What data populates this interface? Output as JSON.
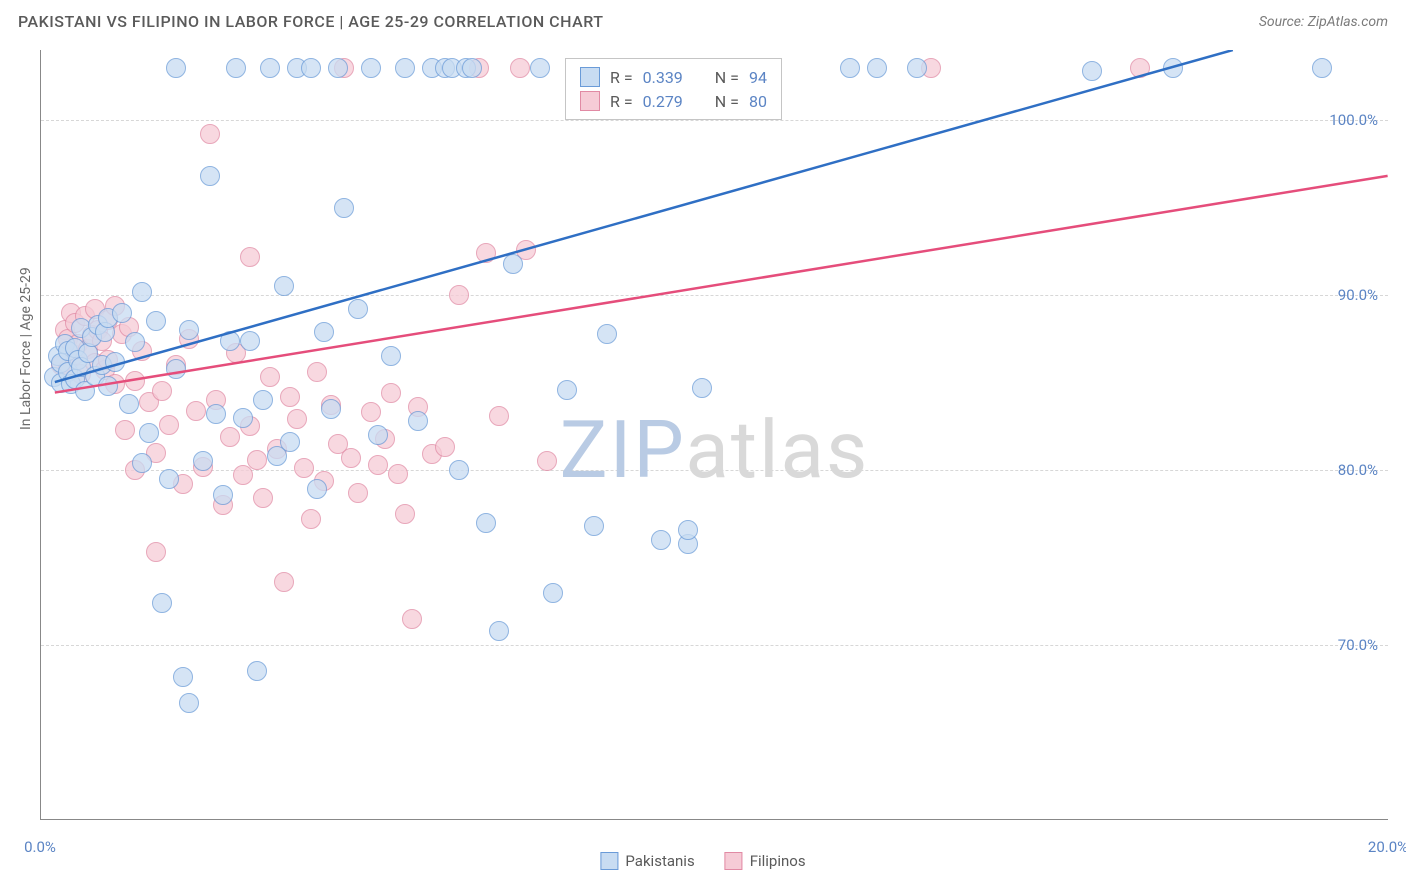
{
  "header": {
    "title": "PAKISTANI VS FILIPINO IN LABOR FORCE | AGE 25-29 CORRELATION CHART",
    "source": "Source: ZipAtlas.com"
  },
  "chart": {
    "type": "scatter",
    "y_axis_label": "In Labor Force | Age 25-29",
    "xlim": [
      0,
      20
    ],
    "ylim": [
      60,
      104
    ],
    "y_ticks": [
      70,
      80,
      90,
      100
    ],
    "y_tick_labels": [
      "70.0%",
      "80.0%",
      "90.0%",
      "100.0%"
    ],
    "x_ticks": [
      0,
      2,
      4,
      6,
      8,
      10,
      12,
      14,
      16,
      18,
      20
    ],
    "x_tick_labels": {
      "0": "0.0%",
      "20": "20.0%"
    },
    "grid_color": "#d7d7d7",
    "axis_color": "#888888",
    "background": "#ffffff",
    "text_color": "#5a5a5a",
    "tick_label_color": "#5b84c4",
    "marker_radius": 10,
    "series": {
      "pakistanis": {
        "label": "Pakistanis",
        "fill": "#c8dcf2",
        "stroke": "#6a9bd8",
        "opacity": 0.75,
        "R": 0.339,
        "N": 94,
        "regression": {
          "x1": 0.2,
          "y1": 85.0,
          "x2": 17.7,
          "y2": 104.0,
          "color": "#2f6fc4",
          "width": 2.5
        },
        "points": [
          [
            0.2,
            85.3
          ],
          [
            0.25,
            86.5
          ],
          [
            0.3,
            86.1
          ],
          [
            0.3,
            85.0
          ],
          [
            0.35,
            87.2
          ],
          [
            0.4,
            86.8
          ],
          [
            0.4,
            85.6
          ],
          [
            0.45,
            84.9
          ],
          [
            0.5,
            87.0
          ],
          [
            0.5,
            85.2
          ],
          [
            0.55,
            86.3
          ],
          [
            0.6,
            88.1
          ],
          [
            0.6,
            85.9
          ],
          [
            0.65,
            84.5
          ],
          [
            0.7,
            86.7
          ],
          [
            0.75,
            87.6
          ],
          [
            0.8,
            85.4
          ],
          [
            0.85,
            88.3
          ],
          [
            0.9,
            86.0
          ],
          [
            0.95,
            87.9
          ],
          [
            1.0,
            84.8
          ],
          [
            1.0,
            88.7
          ],
          [
            1.1,
            86.2
          ],
          [
            1.2,
            89.0
          ],
          [
            1.3,
            83.8
          ],
          [
            1.4,
            87.3
          ],
          [
            1.5,
            90.2
          ],
          [
            1.5,
            80.4
          ],
          [
            1.6,
            82.1
          ],
          [
            1.7,
            88.5
          ],
          [
            1.8,
            72.4
          ],
          [
            1.9,
            79.5
          ],
          [
            2.0,
            103.0
          ],
          [
            2.0,
            85.8
          ],
          [
            2.1,
            68.2
          ],
          [
            2.2,
            88.0
          ],
          [
            2.2,
            66.7
          ],
          [
            2.4,
            80.5
          ],
          [
            2.5,
            96.8
          ],
          [
            2.6,
            83.2
          ],
          [
            2.7,
            78.6
          ],
          [
            2.8,
            87.4
          ],
          [
            2.9,
            103.0
          ],
          [
            3.0,
            83.0
          ],
          [
            3.1,
            87.4
          ],
          [
            3.2,
            68.5
          ],
          [
            3.3,
            84.0
          ],
          [
            3.4,
            103.0
          ],
          [
            3.5,
            80.8
          ],
          [
            3.6,
            90.5
          ],
          [
            3.7,
            81.6
          ],
          [
            3.8,
            103.0
          ],
          [
            4.0,
            103.0
          ],
          [
            4.1,
            78.9
          ],
          [
            4.2,
            87.9
          ],
          [
            4.3,
            83.5
          ],
          [
            4.4,
            103.0
          ],
          [
            4.5,
            95.0
          ],
          [
            4.7,
            89.2
          ],
          [
            4.9,
            103.0
          ],
          [
            5.0,
            82.0
          ],
          [
            5.2,
            86.5
          ],
          [
            5.4,
            103.0
          ],
          [
            5.6,
            82.8
          ],
          [
            5.8,
            103.0
          ],
          [
            6.0,
            103.0
          ],
          [
            6.1,
            103.0
          ],
          [
            6.2,
            80.0
          ],
          [
            6.3,
            103.0
          ],
          [
            6.4,
            103.0
          ],
          [
            6.6,
            77.0
          ],
          [
            6.8,
            70.8
          ],
          [
            7.0,
            91.8
          ],
          [
            7.4,
            103.0
          ],
          [
            7.6,
            73.0
          ],
          [
            7.8,
            84.6
          ],
          [
            8.0,
            103.0
          ],
          [
            8.2,
            76.8
          ],
          [
            8.4,
            87.8
          ],
          [
            8.6,
            103.0
          ],
          [
            9.0,
            103.0
          ],
          [
            9.2,
            76.0
          ],
          [
            9.4,
            103.0
          ],
          [
            9.6,
            75.8
          ],
          [
            9.6,
            76.6
          ],
          [
            9.8,
            84.7
          ],
          [
            10.1,
            103.0
          ],
          [
            10.6,
            103.0
          ],
          [
            12.0,
            103.0
          ],
          [
            12.4,
            103.0
          ],
          [
            13.0,
            103.0
          ],
          [
            15.6,
            102.8
          ],
          [
            16.8,
            103.0
          ],
          [
            19.0,
            103.0
          ]
        ]
      },
      "filipinos": {
        "label": "Filipinos",
        "fill": "#f6cbd6",
        "stroke": "#e18aa4",
        "opacity": 0.75,
        "R": 0.279,
        "N": 80,
        "regression": {
          "x1": 0.2,
          "y1": 84.4,
          "x2": 20.0,
          "y2": 96.8,
          "color": "#e54d7b",
          "width": 2.5
        },
        "points": [
          [
            0.3,
            86.0
          ],
          [
            0.35,
            88.0
          ],
          [
            0.4,
            87.5
          ],
          [
            0.4,
            85.8
          ],
          [
            0.45,
            89.0
          ],
          [
            0.5,
            86.6
          ],
          [
            0.5,
            88.4
          ],
          [
            0.55,
            87.2
          ],
          [
            0.6,
            85.5
          ],
          [
            0.65,
            88.8
          ],
          [
            0.7,
            86.9
          ],
          [
            0.75,
            87.7
          ],
          [
            0.8,
            89.2
          ],
          [
            0.8,
            86.1
          ],
          [
            0.85,
            88.0
          ],
          [
            0.9,
            87.4
          ],
          [
            0.95,
            85.7
          ],
          [
            1.0,
            88.6
          ],
          [
            1.0,
            86.3
          ],
          [
            1.1,
            89.4
          ],
          [
            1.1,
            84.9
          ],
          [
            1.2,
            87.8
          ],
          [
            1.25,
            82.3
          ],
          [
            1.3,
            88.2
          ],
          [
            1.4,
            85.1
          ],
          [
            1.4,
            80.0
          ],
          [
            1.5,
            86.8
          ],
          [
            1.6,
            83.9
          ],
          [
            1.7,
            81.0
          ],
          [
            1.7,
            75.3
          ],
          [
            1.8,
            84.5
          ],
          [
            1.9,
            82.6
          ],
          [
            2.0,
            86.0
          ],
          [
            2.1,
            79.2
          ],
          [
            2.2,
            87.5
          ],
          [
            2.3,
            83.4
          ],
          [
            2.4,
            80.2
          ],
          [
            2.5,
            99.2
          ],
          [
            2.6,
            84.0
          ],
          [
            2.7,
            78.0
          ],
          [
            2.8,
            81.9
          ],
          [
            2.9,
            86.7
          ],
          [
            3.0,
            79.7
          ],
          [
            3.1,
            92.2
          ],
          [
            3.1,
            82.5
          ],
          [
            3.2,
            80.6
          ],
          [
            3.3,
            78.4
          ],
          [
            3.4,
            85.3
          ],
          [
            3.5,
            81.2
          ],
          [
            3.6,
            73.6
          ],
          [
            3.7,
            84.2
          ],
          [
            3.8,
            82.9
          ],
          [
            3.9,
            80.1
          ],
          [
            4.0,
            77.2
          ],
          [
            4.1,
            85.6
          ],
          [
            4.2,
            79.4
          ],
          [
            4.3,
            83.7
          ],
          [
            4.4,
            81.5
          ],
          [
            4.5,
            103.0
          ],
          [
            4.6,
            80.7
          ],
          [
            4.7,
            78.7
          ],
          [
            4.9,
            83.3
          ],
          [
            5.0,
            80.3
          ],
          [
            5.1,
            81.8
          ],
          [
            5.2,
            84.4
          ],
          [
            5.3,
            79.8
          ],
          [
            5.4,
            77.5
          ],
          [
            5.5,
            71.5
          ],
          [
            5.6,
            83.6
          ],
          [
            5.8,
            80.9
          ],
          [
            6.0,
            81.3
          ],
          [
            6.2,
            90.0
          ],
          [
            6.5,
            103.0
          ],
          [
            6.6,
            92.4
          ],
          [
            6.8,
            83.1
          ],
          [
            7.1,
            103.0
          ],
          [
            7.2,
            92.6
          ],
          [
            7.5,
            80.5
          ],
          [
            13.2,
            103.0
          ],
          [
            16.3,
            103.0
          ]
        ]
      }
    },
    "bottom_legend": [
      {
        "label": "Pakistanis",
        "fill": "#c8dcf2",
        "stroke": "#6a9bd8"
      },
      {
        "label": "Filipinos",
        "fill": "#f6cbd6",
        "stroke": "#e18aa4"
      }
    ],
    "stats_box": [
      {
        "fill": "#c8dcf2",
        "stroke": "#6a9bd8",
        "R": "0.339",
        "N": "94"
      },
      {
        "fill": "#f6cbd6",
        "stroke": "#e18aa4",
        "R": "0.279",
        "N": "80"
      }
    ],
    "watermark": {
      "zip": "ZIP",
      "atlas": "atlas"
    }
  }
}
